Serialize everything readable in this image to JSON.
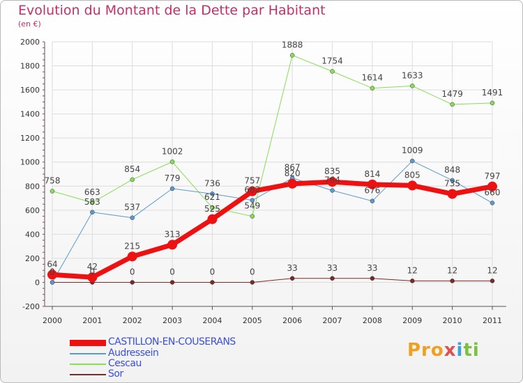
{
  "title": "Evolution du Montant de la Dette par Habitant",
  "subtitle": "(en €)",
  "logo": "Proxiti",
  "chart_data": {
    "type": "line",
    "x": [
      "2000",
      "2001",
      "2002",
      "2003",
      "2004",
      "2005",
      "2006",
      "2007",
      "2008",
      "2009",
      "2010",
      "2011"
    ],
    "ylim": [
      -200,
      2000
    ],
    "yticks": [
      -200,
      0,
      200,
      400,
      600,
      800,
      1000,
      1200,
      1400,
      1600,
      1800,
      2000
    ],
    "grid": true,
    "legend_position": "bottom-left",
    "series": [
      {
        "name": "Sor",
        "color": "#7a2a2a",
        "width": 1,
        "marker": 3,
        "values": [
          0,
          0,
          0,
          0,
          0,
          0,
          33,
          33,
          33,
          12,
          12,
          12
        ]
      },
      {
        "name": "Cescau",
        "color": "#88dd55",
        "width": 1,
        "marker": 3,
        "values": [
          758,
          663,
          854,
          1002,
          621,
          549,
          1888,
          1754,
          1614,
          1633,
          1479,
          1491
        ]
      },
      {
        "name": "Audressein",
        "color": "#5a9ad0",
        "width": 1,
        "marker": 3,
        "values": [
          0,
          583,
          537,
          779,
          736,
          682,
          867,
          764,
          676,
          1009,
          848,
          660
        ]
      },
      {
        "name": "CASTILLON-EN-COUSERANS",
        "color": "#ee1111",
        "width": 7,
        "marker": 7,
        "values": [
          64,
          42,
          215,
          313,
          525,
          757,
          820,
          835,
          814,
          805,
          735,
          797
        ]
      }
    ],
    "labels": [
      {
        "series": "Sor",
        "values": [
          "0",
          "0",
          "0",
          "0",
          "0",
          "0",
          "33",
          "33",
          "33",
          "12",
          "12",
          "12"
        ]
      },
      {
        "series": "Cescau",
        "values": [
          "758",
          "663",
          "854",
          "1002",
          "621",
          "549",
          "1888",
          "1754",
          "1614",
          "1633",
          "1479",
          "1491"
        ]
      },
      {
        "series": "Audressein",
        "values": [
          "0",
          "583",
          "537",
          "779",
          "736",
          "682",
          "867",
          "764",
          "676",
          "1009",
          "848",
          "660"
        ]
      },
      {
        "series": "CASTILLON-EN-COUSERANS",
        "values": [
          "64",
          "42",
          "215",
          "313",
          "525",
          "757",
          "820",
          "835",
          "814",
          "805",
          "735",
          "797"
        ]
      }
    ]
  },
  "legend": [
    {
      "label": "CASTILLON-EN-COUSERANS",
      "color": "#ee1111"
    },
    {
      "label": "Audressein",
      "color": "#5a9ad0"
    },
    {
      "label": "Cescau",
      "color": "#88dd55"
    },
    {
      "label": "Sor",
      "color": "#7a2a2a"
    }
  ]
}
